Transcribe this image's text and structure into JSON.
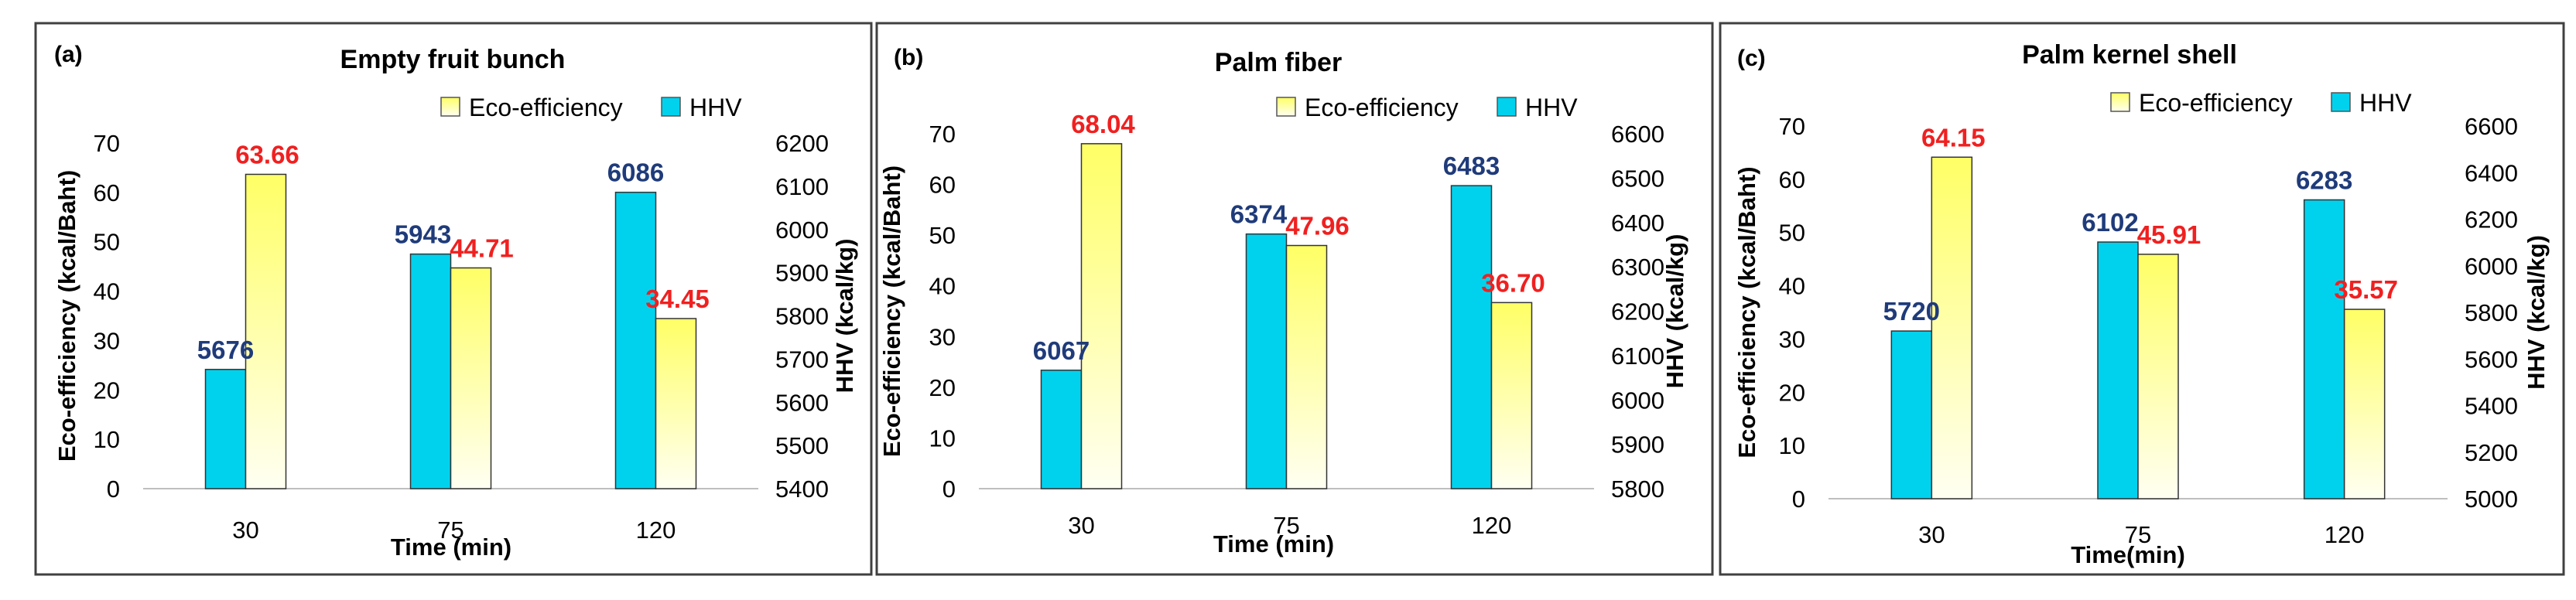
{
  "colors": {
    "hhv_fill": "#00d2ee",
    "eco_top": "#ffff66",
    "eco_bottom": "#fffff2",
    "hhv_label": "#1f3b7a",
    "eco_label": "#f02020",
    "frame": "#404040",
    "axis": "#bfbfbf"
  },
  "chart_data": [
    {
      "type": "bar",
      "panel": "(a)",
      "title": "Empty fruit bunch",
      "xlabel": "Time (min)",
      "ylabel_left": "Eco-efficiency (kcal/Baht)",
      "ylabel_right": "HHV (kcal/kg)",
      "categories": [
        "30",
        "75",
        "120"
      ],
      "left_ticks": [
        "0",
        "10",
        "20",
        "30",
        "40",
        "50",
        "60",
        "70"
      ],
      "right_ticks": [
        "5400",
        "5500",
        "5600",
        "5700",
        "5800",
        "5900",
        "6000",
        "6100",
        "6200"
      ],
      "ylim_left": [
        0,
        70
      ],
      "ylim_right": [
        5400,
        6200
      ],
      "legend": [
        "Eco-efficiency",
        "HHV"
      ],
      "series": [
        {
          "name": "HHV",
          "axis": "right",
          "values": [
            5676,
            5943,
            6086
          ],
          "labels": [
            "5676",
            "5943",
            "6086"
          ]
        },
        {
          "name": "Eco-efficiency",
          "axis": "left",
          "values": [
            63.66,
            44.71,
            34.45
          ],
          "labels": [
            "63.66",
            "44.71",
            "34.45"
          ]
        }
      ]
    },
    {
      "type": "bar",
      "panel": "(b)",
      "title": "Palm fiber",
      "xlabel": "Time (min)",
      "ylabel_left": "Eco-efficiency (kcal/Baht)",
      "ylabel_right": "HHV (kcal/kg)",
      "categories": [
        "30",
        "75",
        "120"
      ],
      "left_ticks": [
        "0",
        "10",
        "20",
        "30",
        "40",
        "50",
        "60",
        "70"
      ],
      "right_ticks": [
        "5800",
        "5900",
        "6000",
        "6100",
        "6200",
        "6300",
        "6400",
        "6500",
        "6600"
      ],
      "ylim_left": [
        0,
        70
      ],
      "ylim_right": [
        5800,
        6600
      ],
      "legend": [
        "Eco-efficiency",
        "HHV"
      ],
      "series": [
        {
          "name": "HHV",
          "axis": "right",
          "values": [
            6067,
            6374,
            6483
          ],
          "labels": [
            "6067",
            "6374",
            "6483"
          ]
        },
        {
          "name": "Eco-efficiency",
          "axis": "left",
          "values": [
            68.04,
            47.96,
            36.7
          ],
          "labels": [
            "68.04",
            "47.96",
            "36.70"
          ]
        }
      ]
    },
    {
      "type": "bar",
      "panel": "(c)",
      "title": "Palm kernel shell",
      "xlabel": "Time(min)",
      "ylabel_left": "Eco-efficiency (kcal/Baht)",
      "ylabel_right": "HHV (kcal/kg)",
      "categories": [
        "30",
        "75",
        "120"
      ],
      "left_ticks": [
        "0",
        "10",
        "20",
        "30",
        "40",
        "50",
        "60",
        "70"
      ],
      "right_ticks": [
        "5000",
        "5200",
        "5400",
        "5600",
        "5800",
        "6000",
        "6200",
        "6400",
        "6600"
      ],
      "ylim_left": [
        0,
        70
      ],
      "ylim_right": [
        5000,
        6600
      ],
      "legend": [
        "Eco-efficiency",
        "HHV"
      ],
      "series": [
        {
          "name": "HHV",
          "axis": "right",
          "values": [
            5720,
            6102,
            6283
          ],
          "labels": [
            "5720",
            "6102",
            "6283"
          ]
        },
        {
          "name": "Eco-efficiency",
          "axis": "left",
          "values": [
            64.15,
            45.91,
            35.57
          ],
          "labels": [
            "64.15",
            "45.91",
            "35.57"
          ]
        }
      ]
    }
  ]
}
